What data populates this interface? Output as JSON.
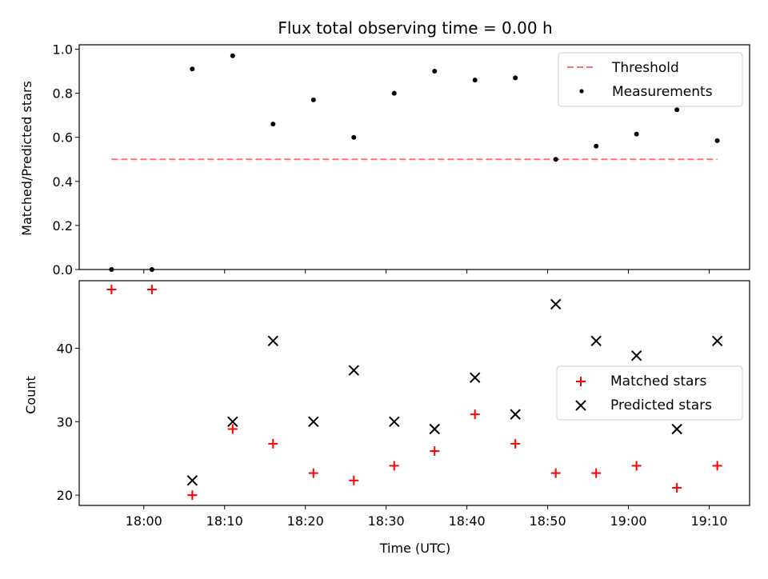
{
  "chart_data": [
    {
      "type": "scatter",
      "title": "Flux total observing time = 0.00 h",
      "xlabel": "",
      "ylabel": "Matched/Predicted stars",
      "ylim": [
        0,
        1.02
      ],
      "y_ticks": [
        "0.0",
        "0.2",
        "0.4",
        "0.6",
        "0.8",
        "1.0"
      ],
      "legend_position": "top-right",
      "threshold": {
        "name": "Threshold",
        "value": 0.5,
        "x_start": "17:56",
        "x_end": "19:11",
        "color": "#ff7070"
      },
      "series": [
        {
          "name": "Measurements",
          "color": "#000000",
          "x": [
            "17:56",
            "18:01",
            "18:06",
            "18:11",
            "18:16",
            "18:21",
            "18:26",
            "18:31",
            "18:36",
            "18:41",
            "18:46",
            "18:51",
            "18:56",
            "19:01",
            "19:06",
            "19:11"
          ],
          "y": [
            0.0,
            0.0,
            0.91,
            0.97,
            0.66,
            0.77,
            0.6,
            0.8,
            0.9,
            0.86,
            0.87,
            0.5,
            0.56,
            0.615,
            0.725,
            0.585
          ]
        }
      ]
    },
    {
      "type": "scatter",
      "xlabel": "Time (UTC)",
      "ylabel": "Count",
      "ylim": [
        18.6,
        49.2
      ],
      "y_ticks": [
        "20",
        "30",
        "40"
      ],
      "x_ticks": [
        "18:00",
        "18:10",
        "18:20",
        "18:30",
        "18:40",
        "18:50",
        "19:00",
        "19:10"
      ],
      "legend_position": "center-right",
      "series": [
        {
          "name": "Matched stars",
          "color": "#ff0000",
          "marker": "plus",
          "x": [
            "17:56",
            "18:01",
            "18:06",
            "18:11",
            "18:16",
            "18:21",
            "18:26",
            "18:31",
            "18:36",
            "18:41",
            "18:46",
            "18:51",
            "18:56",
            "19:01",
            "19:06",
            "19:11"
          ],
          "y": [
            48,
            48,
            20,
            29,
            27,
            23,
            22,
            24,
            26,
            31,
            27,
            23,
            23,
            24,
            21,
            24
          ]
        },
        {
          "name": "Predicted stars",
          "color": "#000000",
          "marker": "x",
          "x": [
            "18:06",
            "18:11",
            "18:16",
            "18:21",
            "18:26",
            "18:31",
            "18:36",
            "18:41",
            "18:46",
            "18:51",
            "18:56",
            "19:01",
            "19:06",
            "19:11"
          ],
          "y": [
            22,
            30,
            41,
            30,
            37,
            30,
            29,
            36,
            31,
            46,
            41,
            39,
            29,
            41
          ]
        }
      ]
    }
  ]
}
